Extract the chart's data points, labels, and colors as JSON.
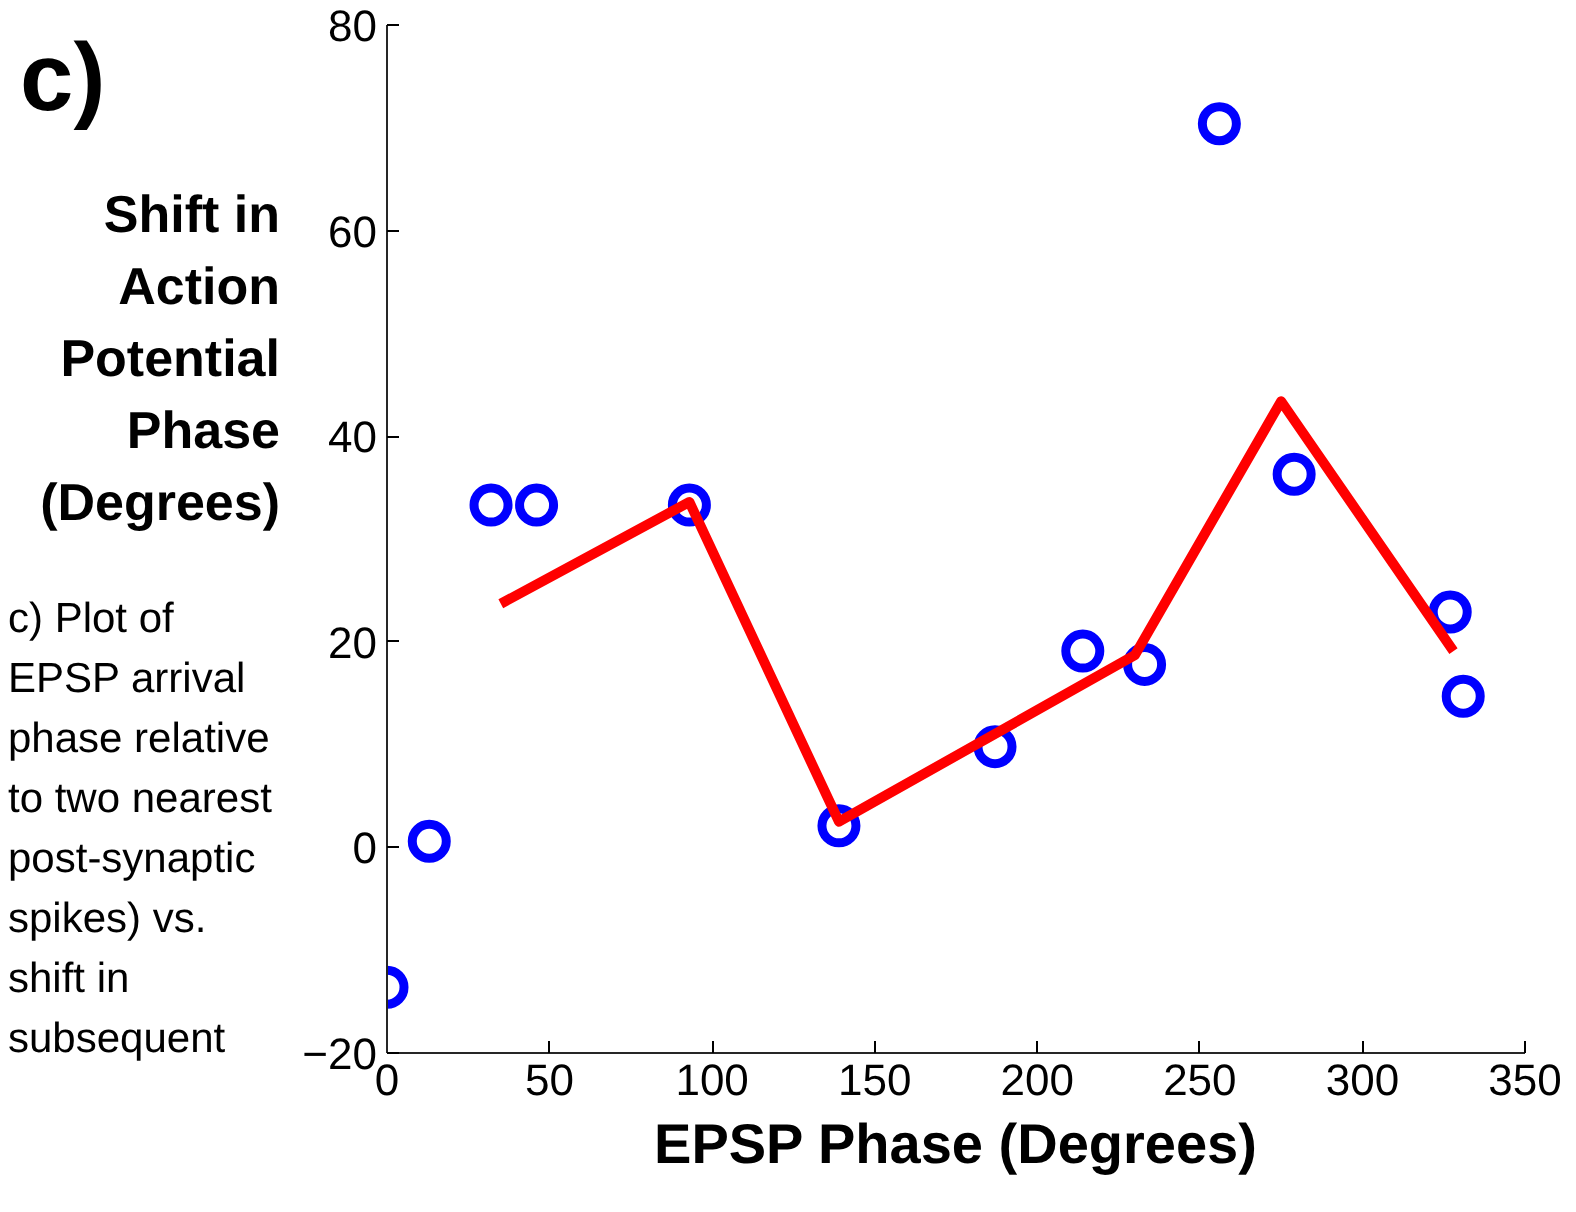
{
  "chart_data": {
    "type": "scatter",
    "title": "c)",
    "xlabel": "EPSP Phase (Degrees)",
    "ylabel": "Shift in Action Potential Phase (Degrees)",
    "annotations": [
      "c) Plot of EPSP arrival phase relative to two nearest post-synaptic spikes) vs. shift in subsequent"
    ],
    "xlim": [
      0,
      350
    ],
    "ylim": [
      -20,
      80
    ],
    "xticks": [
      0,
      50,
      100,
      150,
      200,
      250,
      300,
      350
    ],
    "yticks": [
      -20,
      0,
      20,
      40,
      60,
      80
    ],
    "grid": false,
    "series": [
      {
        "marker": "circle",
        "color": "#0000ff",
        "x": [
          0,
          13,
          32,
          46,
          93,
          139,
          187,
          214,
          233,
          256,
          279,
          327,
          331
        ],
        "values": [
          -13.6,
          0.6,
          33.3,
          33.3,
          33.3,
          2.1,
          9.8,
          19.1,
          17.8,
          70.4,
          36.3,
          22.9,
          14.7
        ]
      },
      {
        "type": "line",
        "line_style": "solid",
        "color": "#ff0000",
        "x": [
          35,
          93,
          139,
          230,
          275,
          328
        ],
        "values": [
          23.7,
          33.6,
          2.5,
          18.7,
          43.4,
          19.1
        ]
      }
    ]
  }
}
